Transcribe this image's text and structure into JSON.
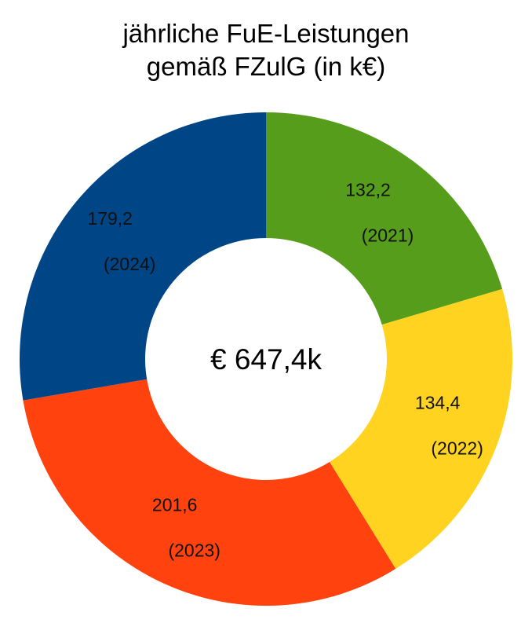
{
  "chart_data": {
    "type": "pie",
    "title_lines": [
      "jährliche FuE-Leistungen",
      "gemäß FZulG (in k€)"
    ],
    "center_text": "€ 647,4k",
    "segments": [
      {
        "value": 132.2,
        "value_label": "132,2",
        "year_label": "(2021)",
        "color": "#579D1C"
      },
      {
        "value": 134.4,
        "value_label": "134,4",
        "year_label": "(2022)",
        "color": "#FFD320"
      },
      {
        "value": 201.6,
        "value_label": "201,6",
        "year_label": "(2023)",
        "color": "#FF420E"
      },
      {
        "value": 179.2,
        "value_label": "179,2",
        "year_label": "(2024)",
        "color": "#004586"
      }
    ]
  }
}
